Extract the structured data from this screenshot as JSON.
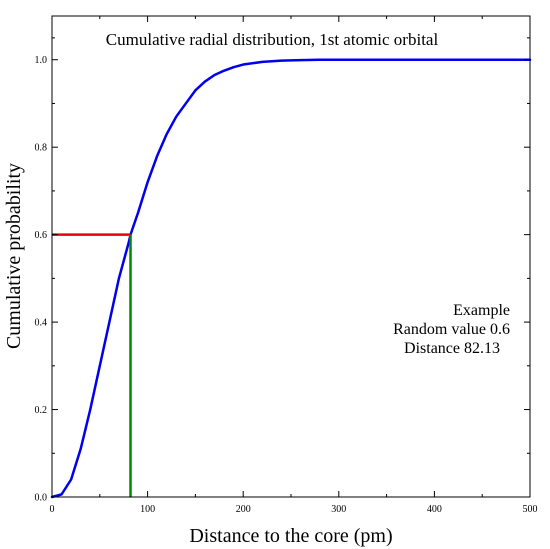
{
  "chart_data": {
    "type": "line",
    "title": "Cumulative radial distribution, 1st atomic orbital",
    "xlabel": "Distance to the core (pm)",
    "ylabel": "Cumulative probability",
    "xlim": [
      0,
      500
    ],
    "ylim": [
      0,
      1.1
    ],
    "x_ticks": [
      "0",
      "100",
      "200",
      "300",
      "400",
      "500"
    ],
    "y_ticks": [
      "0.0",
      "0.2",
      "0.4",
      "0.6",
      "0.8",
      "1.0"
    ],
    "grid": false,
    "annotation": [
      "Example",
      "Random value 0.6",
      "Distance 82.13"
    ],
    "series": [
      {
        "color": "#0000ee",
        "x": [
          0,
          10,
          20,
          30,
          40,
          50,
          60,
          70,
          80,
          82.13,
          90,
          100,
          110,
          120,
          130,
          140,
          150,
          160,
          170,
          180,
          190,
          200,
          220,
          240,
          260,
          280,
          300,
          350,
          400,
          450,
          500
        ],
        "y": [
          0,
          0.006,
          0.04,
          0.11,
          0.2,
          0.3,
          0.4,
          0.5,
          0.58,
          0.6,
          0.65,
          0.72,
          0.78,
          0.83,
          0.87,
          0.9,
          0.93,
          0.95,
          0.965,
          0.975,
          0.983,
          0.989,
          0.995,
          0.998,
          0.999,
          1.0,
          1.0,
          1.0,
          1.0,
          1.0,
          1.0
        ]
      }
    ],
    "guides": [
      {
        "color": "#ee0000",
        "x": [
          0,
          82.13
        ],
        "y": [
          0.6,
          0.6
        ]
      },
      {
        "color": "#008800",
        "x": [
          82.13,
          82.13
        ],
        "y": [
          0.6,
          0
        ]
      }
    ]
  }
}
